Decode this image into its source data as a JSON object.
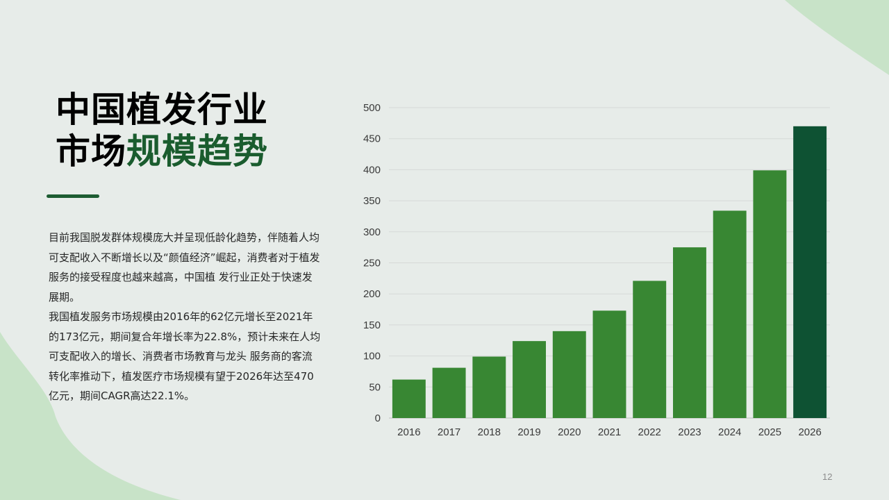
{
  "title": {
    "line1": "中国植发行业",
    "line2_plain": "市场",
    "line2_accent": "规模趋势"
  },
  "body": {
    "paragraph1": "目前我国脱发群体规模庞大并呈现低龄化趋势，伴随着人均可支配收入不断增长以及“颜值经济”崛起，消费者对于植发服务的接受程度也越来越高，中国植 发行业正处于快速发展期。",
    "paragraph2": "我国植发服务市场规模由2016年的62亿元增长至2021年的173亿元，期间复合年增长率为22.8%，预计未来在人均可支配收入的增长、消费者市场教育与龙头 服务商的客流转化率推动下，植发医疗市场规模有望于2026年达至470亿元，期间CAGR高达22.1%。"
  },
  "page_number": "12",
  "colors": {
    "background": "#e7ece9",
    "decoration": "#c8e3c8",
    "bar": "#388733",
    "bar_highlight": "#0e5233",
    "title_accent": "#1a5c2e"
  },
  "chart_data": {
    "type": "bar",
    "categories": [
      "2016",
      "2017",
      "2018",
      "2019",
      "2020",
      "2021",
      "2022",
      "2023",
      "2024",
      "2025",
      "2026"
    ],
    "values": [
      62,
      81,
      99,
      124,
      140,
      173,
      221,
      275,
      334,
      399,
      470
    ],
    "highlight_index": 10,
    "title": "",
    "xlabel": "",
    "ylabel": "",
    "ylim": [
      0,
      500
    ],
    "yticks": [
      0,
      50,
      100,
      150,
      200,
      250,
      300,
      350,
      400,
      450,
      500
    ],
    "grid": true,
    "legend": "none"
  }
}
